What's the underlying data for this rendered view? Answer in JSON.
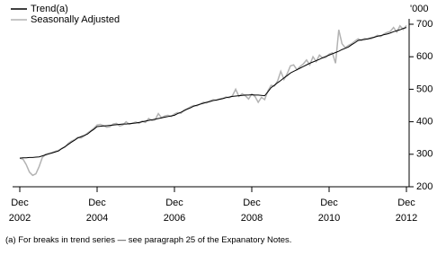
{
  "chart_data": {
    "type": "line",
    "unit_label": "'000",
    "footnote": "(a) For breaks in trend series — see paragraph 25 of the Expanatory Notes.",
    "categories": [
      "Dec 2002",
      null,
      null,
      null,
      null,
      null,
      null,
      null,
      null,
      null,
      null,
      null,
      null,
      null,
      null,
      null,
      null,
      null,
      null,
      null,
      null,
      null,
      null,
      null,
      "Dec 2004",
      null,
      null,
      null,
      null,
      null,
      null,
      null,
      null,
      null,
      null,
      null,
      null,
      null,
      null,
      null,
      null,
      null,
      null,
      null,
      null,
      null,
      null,
      null,
      "Dec 2006",
      null,
      null,
      null,
      null,
      null,
      null,
      null,
      null,
      null,
      null,
      null,
      null,
      null,
      null,
      null,
      null,
      null,
      null,
      null,
      null,
      null,
      null,
      null,
      "Dec 2008",
      null,
      null,
      null,
      null,
      null,
      null,
      null,
      null,
      null,
      null,
      null,
      null,
      null,
      null,
      null,
      null,
      null,
      null,
      null,
      null,
      null,
      null,
      null,
      "Dec 2010",
      null,
      null,
      null,
      null,
      null,
      null,
      null,
      null,
      null,
      null,
      null,
      null,
      null,
      null,
      null,
      null,
      null,
      null,
      null,
      null,
      null,
      null,
      null,
      "Dec 2012"
    ],
    "series": [
      {
        "name": "Trend(a)",
        "color": "#000000",
        "values": [
          288,
          289,
          289,
          290,
          290,
          291,
          292,
          295,
          298,
          301,
          304,
          307,
          310,
          317,
          323,
          330,
          337,
          343,
          350,
          354,
          358,
          362,
          370,
          377,
          385,
          386,
          387,
          388,
          389,
          390,
          391,
          392,
          393,
          393,
          394,
          395,
          396,
          398,
          400,
          402,
          404,
          406,
          408,
          410,
          412,
          414,
          416,
          418,
          420,
          425,
          429,
          434,
          439,
          443,
          448,
          451,
          454,
          457,
          460,
          462,
          465,
          467,
          469,
          471,
          474,
          476,
          478,
          479,
          480,
          481,
          482,
          482,
          483,
          482,
          482,
          481,
          480,
          492,
          505,
          512,
          520,
          527,
          535,
          542,
          550,
          555,
          560,
          565,
          570,
          575,
          580,
          584,
          588,
          592,
          597,
          601,
          605,
          609,
          613,
          617,
          622,
          626,
          630,
          637,
          643,
          650,
          652,
          653,
          655,
          658,
          660,
          663,
          665,
          668,
          670,
          673,
          677,
          680,
          683,
          687,
          690
        ]
      },
      {
        "name": "Seasonally Adjusted",
        "color": "#b3b3b3",
        "values": [
          288,
          285,
          268,
          245,
          235,
          240,
          262,
          290,
          300,
          303,
          305,
          309,
          312,
          318,
          322,
          333,
          340,
          345,
          352,
          350,
          356,
          365,
          372,
          380,
          390,
          392,
          388,
          383,
          385,
          393,
          395,
          387,
          390,
          400,
          392,
          396,
          399,
          395,
          402,
          398,
          410,
          404,
          406,
          425,
          412,
          418,
          420,
          416,
          424,
          428,
          426,
          436,
          440,
          446,
          450,
          449,
          455,
          460,
          458,
          464,
          468,
          466,
          470,
          472,
          476,
          474,
          480,
          500,
          478,
          486,
          480,
          470,
          485,
          478,
          460,
          475,
          468,
          495,
          512,
          510,
          525,
          555,
          530,
          548,
          572,
          575,
          560,
          570,
          578,
          590,
          575,
          600,
          585,
          605,
          596,
          598,
          608,
          612,
          580,
          683,
          640,
          628,
          635,
          640,
          648,
          655,
          650,
          656,
          654,
          655,
          660,
          666,
          662,
          670,
          675,
          678,
          690,
          676,
          695,
          684,
          696
        ]
      }
    ],
    "ylim": [
      200,
      700
    ],
    "yticks": [
      200,
      300,
      400,
      500,
      600,
      700
    ],
    "grid": false,
    "legend": "top-left"
  }
}
